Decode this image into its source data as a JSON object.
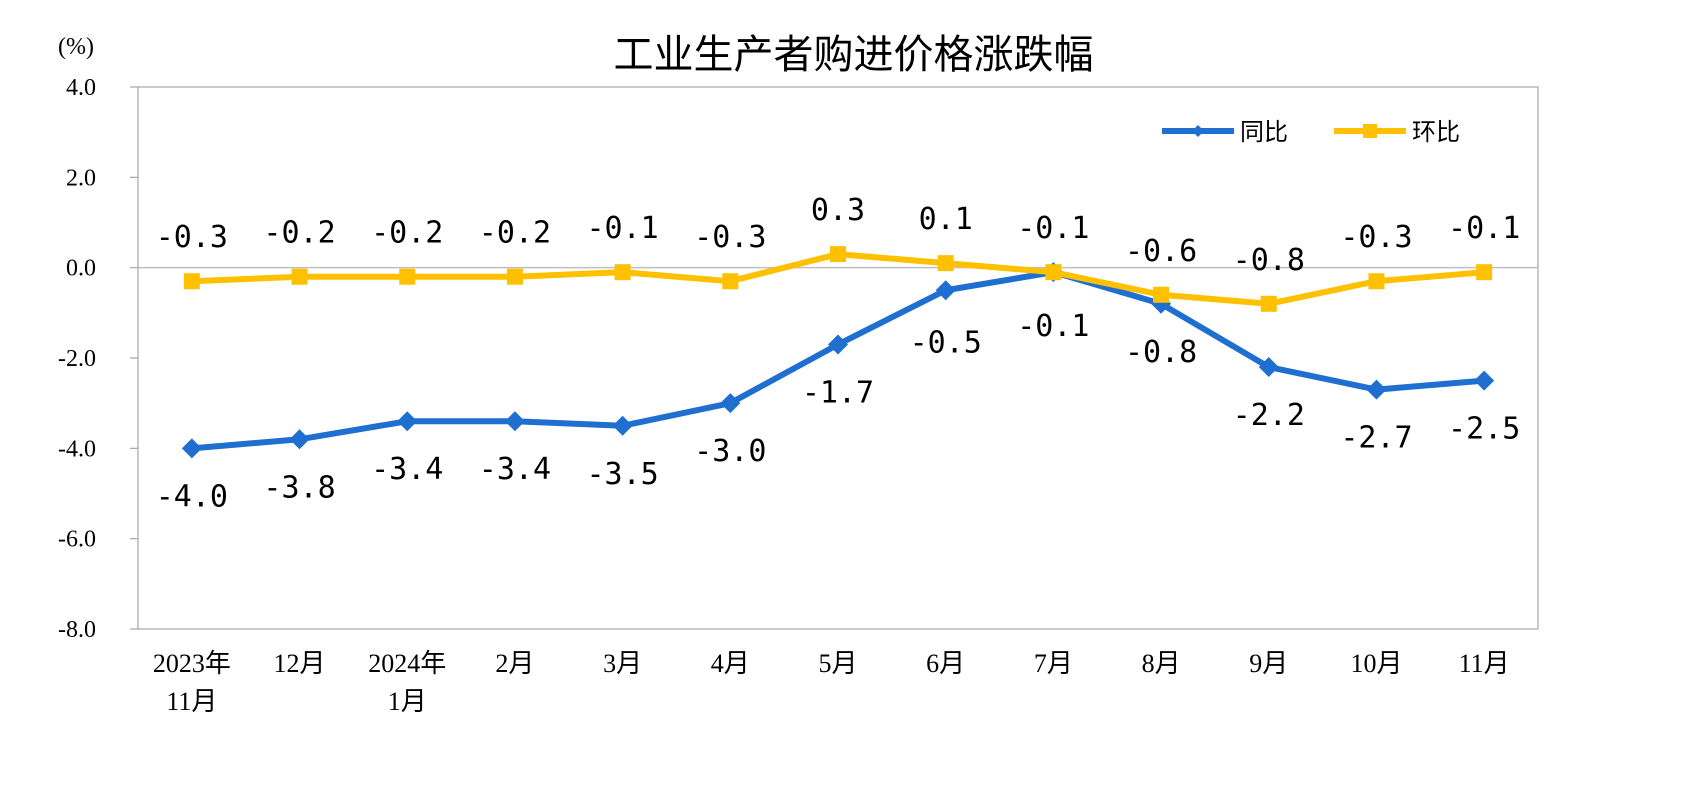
{
  "chart_data": {
    "type": "line",
    "title": "工业生产者购进价格涨跌幅",
    "unit_label": "(%)",
    "categories": [
      [
        "2023年",
        "11月"
      ],
      [
        "12月"
      ],
      [
        "2024年",
        "1月"
      ],
      [
        "2月"
      ],
      [
        "3月"
      ],
      [
        "4月"
      ],
      [
        "5月"
      ],
      [
        "6月"
      ],
      [
        "7月"
      ],
      [
        "8月"
      ],
      [
        "9月"
      ],
      [
        "10月"
      ],
      [
        "11月"
      ]
    ],
    "yticks": [
      "4.0",
      "2.0",
      "0.0",
      "-2.0",
      "-4.0",
      "-6.0",
      "-8.0"
    ],
    "ylim": [
      -8.0,
      4.0
    ],
    "grid": false,
    "legend_position": "top-right",
    "series": [
      {
        "name": "同比",
        "color": "#1f6fd1",
        "marker": "diamond",
        "values": [
          -4.0,
          -3.8,
          -3.4,
          -3.4,
          -3.5,
          -3.0,
          -1.7,
          -0.5,
          -0.1,
          -0.8,
          -2.2,
          -2.7,
          -2.5
        ],
        "labels": [
          "-4.0",
          "-3.8",
          "-3.4",
          "-3.4",
          "-3.5",
          "-3.0",
          "-1.7",
          "-0.5",
          "-0.1",
          "-0.8",
          "-2.2",
          "-2.7",
          "-2.5"
        ]
      },
      {
        "name": "环比",
        "color": "#ffc000",
        "marker": "square",
        "values": [
          -0.3,
          -0.2,
          -0.2,
          -0.2,
          -0.1,
          -0.3,
          0.3,
          0.1,
          -0.1,
          -0.6,
          -0.8,
          -0.3,
          -0.1
        ],
        "labels": [
          "-0.3",
          "-0.2",
          "-0.2",
          "-0.2",
          "-0.1",
          "-0.3",
          "0.3",
          "0.1",
          "-0.1",
          "-0.6",
          "-0.8",
          "-0.3",
          "-0.1"
        ]
      }
    ]
  }
}
